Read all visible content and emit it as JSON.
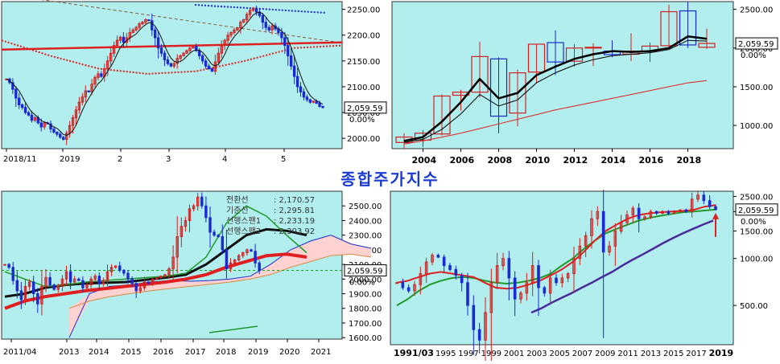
{
  "title": "종합주가지수",
  "colors": {
    "plot_bg": "#b2eeee",
    "frame": "#333333",
    "up": "#d42020",
    "down": "#1a2ad0",
    "price_label_bg": "#ffffff",
    "ma_red": "#e02020",
    "ma_green": "#1f9a2a",
    "ma_purple": "#4a2a9a",
    "cloud": "#ffd2d2",
    "title": "#1a3ad6"
  },
  "chart_data": [
    {
      "id": "daily",
      "type": "candlestick",
      "x_labels": [
        "2018/11",
        "2019",
        "2",
        "3",
        "4",
        "5"
      ],
      "y_ticks": [
        "2250.00",
        "2200.00",
        "2150.00",
        "2100.00",
        "2050.00",
        "2000.00"
      ],
      "ylim": [
        1980,
        2265
      ],
      "current_price": "2,059.59",
      "change_label": "0.00%",
      "closes": [
        2115,
        2108,
        2095,
        2078,
        2065,
        2060,
        2050,
        2045,
        2035,
        2040,
        2030,
        2022,
        2030,
        2028,
        2018,
        2012,
        2008,
        2002,
        1998,
        2010,
        2025,
        2040,
        2055,
        2070,
        2080,
        2092,
        2090,
        2105,
        2118,
        2125,
        2120,
        2135,
        2150,
        2165,
        2180,
        2190,
        2196,
        2186,
        2195,
        2205,
        2210,
        2215,
        2222,
        2225,
        2230,
        2228,
        2210,
        2195,
        2175,
        2165,
        2152,
        2145,
        2140,
        2145,
        2155,
        2160,
        2165,
        2170,
        2175,
        2178,
        2170,
        2160,
        2150,
        2140,
        2135,
        2130,
        2148,
        2165,
        2180,
        2190,
        2200,
        2205,
        2210,
        2214,
        2225,
        2230,
        2240,
        2248,
        2252,
        2245,
        2238,
        2225,
        2215,
        2210,
        2218,
        2212,
        2205,
        2195,
        2180,
        2160,
        2140,
        2120,
        2100,
        2090,
        2080,
        2075,
        2070,
        2072,
        2068,
        2062,
        2059.59
      ],
      "overlays": [
        {
          "name": "ma_short",
          "style": "solid-red",
          "values": [
            2172,
            2186
          ]
        },
        {
          "name": "ma_long",
          "style": "dotted-red",
          "values": [
            2190,
            2160,
            2135,
            2125,
            2130,
            2150,
            2175,
            2180
          ]
        },
        {
          "name": "trend",
          "style": "dashed-brown",
          "values": [
            2280,
            2185
          ]
        }
      ]
    },
    {
      "id": "yearly",
      "type": "candlestick",
      "x_labels": [
        "2004",
        "2006",
        "2008",
        "2010",
        "2012",
        "2014",
        "2016",
        "2018"
      ],
      "y_ticks": [
        "2500.00",
        "2000.00",
        "1500.00",
        "1000.00"
      ],
      "ylim": [
        700,
        2600
      ],
      "current_price": "2,059.59",
      "change_label": "0.00%",
      "candles": [
        {
          "year": "2003",
          "o": 780,
          "h": 900,
          "l": 700,
          "c": 850
        },
        {
          "year": "2004",
          "o": 810,
          "h": 940,
          "l": 720,
          "c": 900
        },
        {
          "year": "2005",
          "o": 890,
          "h": 1400,
          "l": 870,
          "c": 1380
        },
        {
          "year": "2006",
          "o": 1390,
          "h": 1460,
          "l": 1190,
          "c": 1430
        },
        {
          "year": "2007",
          "o": 1430,
          "h": 2080,
          "l": 1360,
          "c": 1890
        },
        {
          "year": "2008",
          "o": 1860,
          "h": 1880,
          "l": 900,
          "c": 1120
        },
        {
          "year": "2009",
          "o": 1160,
          "h": 1720,
          "l": 990,
          "c": 1680
        },
        {
          "year": "2010",
          "o": 1690,
          "h": 2050,
          "l": 1550,
          "c": 2050
        },
        {
          "year": "2011",
          "o": 2070,
          "h": 2230,
          "l": 1650,
          "c": 1820
        },
        {
          "year": "2012",
          "o": 1830,
          "h": 2050,
          "l": 1760,
          "c": 2000
        },
        {
          "year": "2013",
          "o": 2000,
          "h": 2060,
          "l": 1770,
          "c": 2010
        },
        {
          "year": "2014",
          "o": 1960,
          "h": 2100,
          "l": 1880,
          "c": 1915
        },
        {
          "year": "2015",
          "o": 1920,
          "h": 2190,
          "l": 1830,
          "c": 1960
        },
        {
          "year": "2016",
          "o": 1960,
          "h": 2070,
          "l": 1820,
          "c": 2025
        },
        {
          "year": "2017",
          "o": 2030,
          "h": 2560,
          "l": 2020,
          "c": 2470
        },
        {
          "year": "2018",
          "o": 2480,
          "h": 2600,
          "l": 2000,
          "c": 2040
        },
        {
          "year": "2019",
          "o": 2010,
          "h": 2250,
          "l": 1990,
          "c": 2059.59
        }
      ],
      "ma": [
        {
          "name": "ma_red",
          "values": [
            760,
            800,
            850,
            900,
            960,
            1020,
            1080,
            1140,
            1200,
            1250,
            1300,
            1350,
            1400,
            1450,
            1500,
            1550,
            1580
          ]
        },
        {
          "name": "ma_black_thick",
          "values": [
            800,
            850,
            1050,
            1300,
            1600,
            1350,
            1420,
            1650,
            1760,
            1860,
            1920,
            1960,
            1950,
            1960,
            2000,
            2150,
            2120
          ]
        },
        {
          "name": "ma_black_thin",
          "values": [
            780,
            820,
            950,
            1150,
            1400,
            1250,
            1330,
            1550,
            1680,
            1780,
            1850,
            1900,
            1920,
            1940,
            1980,
            2100,
            2090
          ]
        }
      ]
    },
    {
      "id": "ichimoku-monthly",
      "type": "line",
      "x_labels": [
        "2011/04",
        "2013",
        "2014",
        "2015",
        "2016",
        "2017",
        "2018",
        "2019",
        "2020",
        "2021"
      ],
      "y_ticks": [
        "2500.00",
        "2400.00",
        "2300.00",
        "2200.00",
        "2100.00",
        "2000.00",
        "1900.00",
        "1800.00",
        "1700.00",
        "1600.00"
      ],
      "ylim": [
        1590,
        2600
      ],
      "current_price": "2,059.59",
      "change_label": "0.00%",
      "legend": [
        {
          "label": "전환선",
          "value": ": 2,170.57"
        },
        {
          "label": "기준선",
          "value": ": 2,295.81"
        },
        {
          "label": "선행스팬1",
          "value": ": 2,233.19"
        },
        {
          "label": "선행스팬2",
          "value": ": 2,303.92"
        }
      ],
      "price": [
        2100,
        2080,
        1990,
        1920,
        1860,
        1950,
        1980,
        1900,
        1830,
        1950,
        2010,
        1960,
        1930,
        1950,
        2000,
        2050,
        1980,
        2000,
        1990,
        1940,
        1960,
        2000,
        2020,
        1970,
        1990,
        2050,
        2080,
        2090,
        2060,
        2040,
        2000,
        1970,
        1920,
        1940,
        1980,
        1970,
        2000,
        2010,
        2020,
        2030,
        2070,
        2150,
        2290,
        2360,
        2400,
        2480,
        2500,
        2560,
        2500,
        2420,
        2320,
        2300,
        2290,
        2200,
        2070,
        2110,
        2130,
        2160,
        2180,
        2200,
        2190,
        2110,
        2060
      ],
      "lines": [
        {
          "name": "전환선",
          "color": "green",
          "values": [
            2050,
            2000,
            1950,
            1960,
            1980,
            1990,
            2000,
            2010,
            2020,
            2040,
            2150,
            2380,
            2500,
            2430,
            2300,
            2180
          ]
        },
        {
          "name": "기준선",
          "color": "black",
          "values": [
            1880,
            1900,
            1940,
            1960,
            1970,
            1975,
            1980,
            1995,
            2010,
            2030,
            2100,
            2200,
            2300,
            2340,
            2330,
            2300
          ]
        },
        {
          "name": "선행스팬1",
          "color": "red",
          "values": [
            1800,
            1850,
            1880,
            1900,
            1920,
            1935,
            1950,
            1965,
            1980,
            2000,
            2030,
            2080,
            2120,
            2160,
            2170,
            2150
          ]
        },
        {
          "name": "선행스팬2",
          "color": "blue",
          "values": [
            1600,
            1900,
            1950,
            1960,
            1980,
            1990,
            1985,
            1990,
            2000,
            2020,
            2100,
            2200,
            2260,
            2300,
            2240,
            2210
          ]
        }
      ],
      "ref_line": 2059.59
    },
    {
      "id": "long-term-monthly",
      "type": "candlestick",
      "x_labels": [
        "1991/03",
        "1995",
        "1997",
        "1999",
        "2001",
        "2003",
        "2005",
        "2007",
        "2009",
        "2011",
        "2013",
        "2015",
        "2017",
        "2019"
      ],
      "y_ticks": [
        "2500.00",
        "2000.00",
        "1500.00",
        "1000.00",
        "500.00"
      ],
      "y_scale": "log",
      "ylim": [
        280,
        2700
      ],
      "current_price": "2,059.59",
      "change_label": "0.00%",
      "price": [
        700,
        650,
        620,
        680,
        800,
        950,
        1050,
        1020,
        900,
        850,
        780,
        700,
        500,
        350,
        300,
        450,
        700,
        900,
        1000,
        750,
        550,
        600,
        700,
        900,
        650,
        600,
        750,
        700,
        750,
        800,
        1000,
        1200,
        1400,
        1800,
        2000,
        1100,
        1200,
        1500,
        1700,
        1900,
        2100,
        1800,
        1850,
        2000,
        1950,
        2000,
        1950,
        2000,
        2050,
        2000,
        2400,
        2550,
        2350,
        2150,
        2059.59
      ],
      "lines": [
        {
          "name": "ma_red",
          "values": [
            700,
            720,
            760,
            800,
            820,
            800,
            780,
            760,
            700,
            650,
            640,
            650,
            680,
            720,
            780,
            850,
            950,
            1100,
            1300,
            1500,
            1650,
            1800,
            1900,
            1950,
            1980,
            2000,
            2020,
            2050,
            2150,
            2200
          ]
        },
        {
          "name": "ma_green",
          "values": [
            500,
            550,
            620,
            680,
            720,
            750,
            760,
            750,
            720,
            700,
            690,
            700,
            720,
            750,
            800,
            900,
            1000,
            1150,
            1300,
            1450,
            1550,
            1650,
            1750,
            1820,
            1880,
            1930,
            1980,
            2000,
            2030,
            2060
          ]
        },
        {
          "name": "ma_purple",
          "values": [
            450,
            480,
            520,
            560,
            600,
            650,
            700,
            760,
            820,
            900,
            980,
            1060,
            1150,
            1250,
            1350,
            1450,
            1550,
            1650,
            1750
          ]
        }
      ],
      "marker": "up-arrow"
    }
  ]
}
